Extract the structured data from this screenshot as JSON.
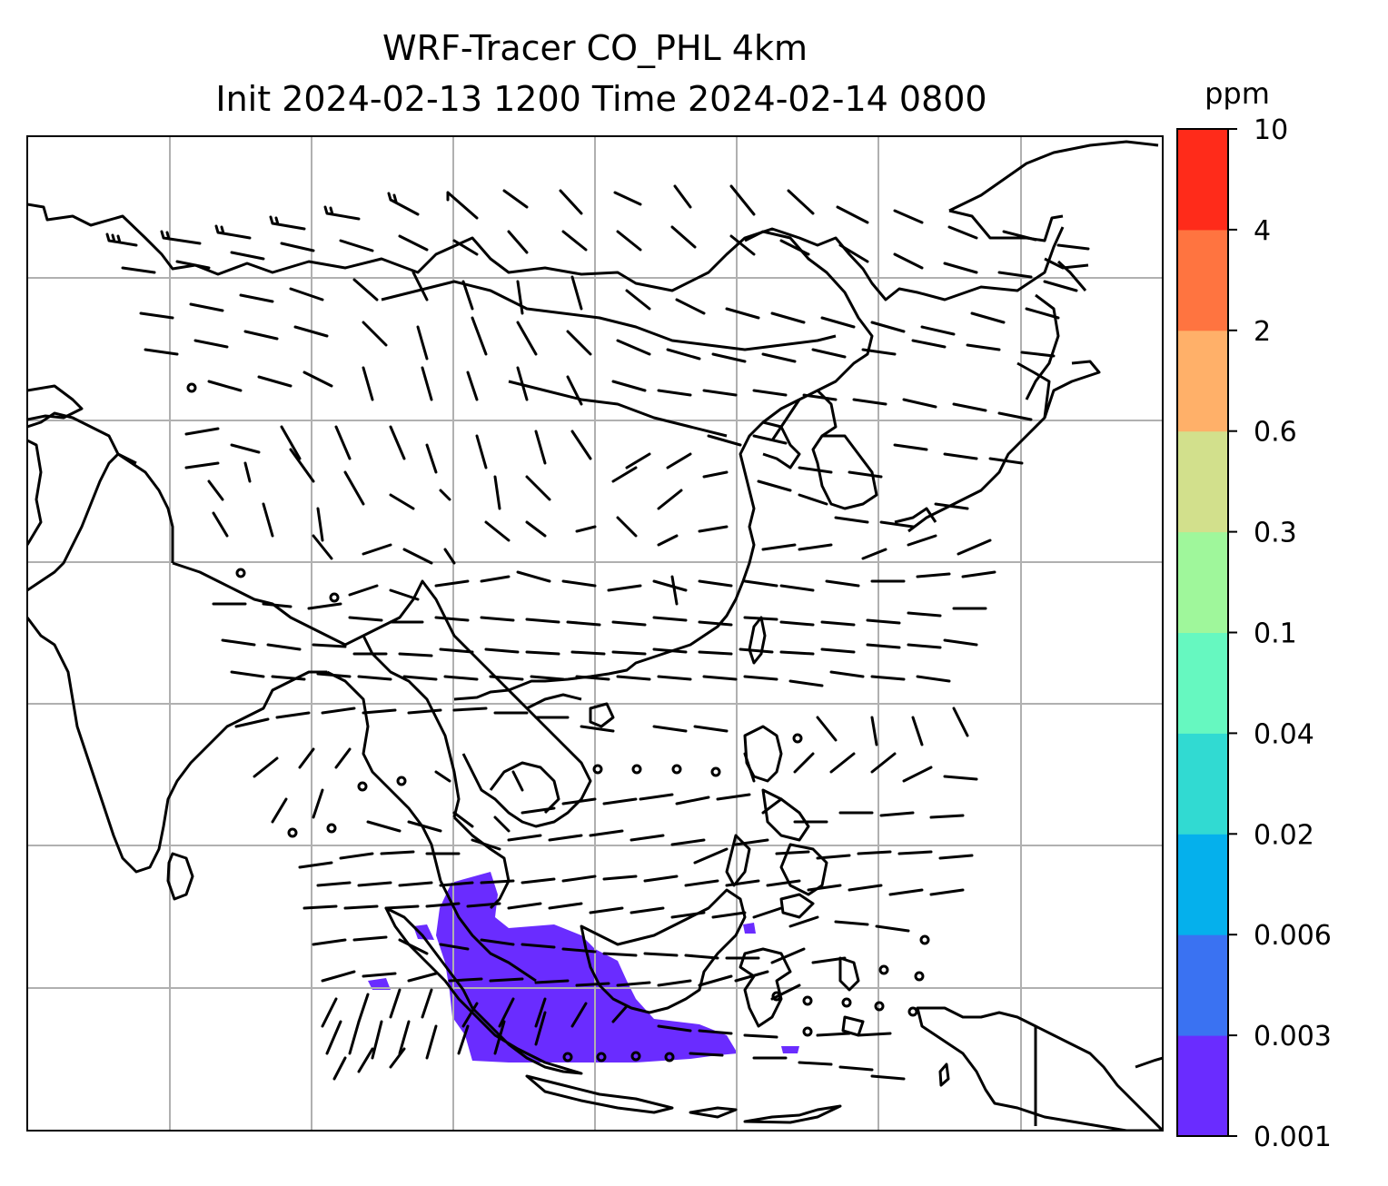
{
  "title": {
    "line1": "WRF-Tracer CO_PHL 4km",
    "line2": "Init 2024-02-13 1200 Time 2024-02-14 0800"
  },
  "colorbar": {
    "unit": "ppm",
    "ticks": [
      "0.001",
      "0.003",
      "0.006",
      "0.02",
      "0.04",
      "0.1",
      "0.3",
      "0.6",
      "2",
      "4",
      "10"
    ],
    "colors": [
      "#6a2cff",
      "#3a72f2",
      "#05b0ec",
      "#31dad2",
      "#66f8c0",
      "#9ff79b",
      "#d2e08c",
      "#ffb069",
      "#ff7440",
      "#ff2b1a"
    ]
  },
  "map": {
    "gridlines": true,
    "overlay": "wind barbs",
    "tracer_plume_color": "#6a2cff",
    "tracer_plume_level": "0.001-0.003 ppm"
  }
}
